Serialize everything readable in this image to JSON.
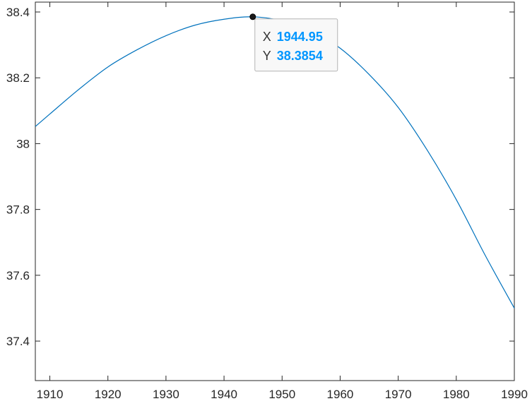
{
  "chart_data": {
    "type": "line",
    "title": "",
    "xlabel": "",
    "ylabel": "",
    "xlim": [
      1907.5,
      1990
    ],
    "ylim": [
      37.28,
      38.43
    ],
    "xticks": [
      1910,
      1920,
      1930,
      1940,
      1950,
      1960,
      1970,
      1980,
      1990
    ],
    "xtick_labels": [
      "1910",
      "1920",
      "1930",
      "1940",
      "1950",
      "1960",
      "1970",
      "1980",
      "1990"
    ],
    "yticks": [
      37.4,
      37.6,
      37.8,
      38,
      38.2,
      38.4
    ],
    "ytick_labels": [
      "37.4",
      "37.6",
      "37.8",
      "38",
      "38.2",
      "38.4"
    ],
    "grid": false,
    "series": [
      {
        "color": "#0072bd",
        "x": [
          1907.5,
          1910,
          1915,
          1920,
          1925,
          1930,
          1935,
          1940,
          1944.95,
          1950,
          1955,
          1960,
          1965,
          1970,
          1975,
          1980,
          1985,
          1990
        ],
        "y": [
          38.052,
          38.09,
          38.165,
          38.233,
          38.285,
          38.328,
          38.36,
          38.378,
          38.3854,
          38.373,
          38.343,
          38.29,
          38.21,
          38.11,
          37.98,
          37.83,
          37.66,
          37.5
        ]
      }
    ],
    "datatip": {
      "x_key": "X",
      "x_value": "1944.95",
      "y_key": "Y",
      "y_value": "38.3854",
      "point_x": 1944.95,
      "point_y": 38.3854
    }
  }
}
